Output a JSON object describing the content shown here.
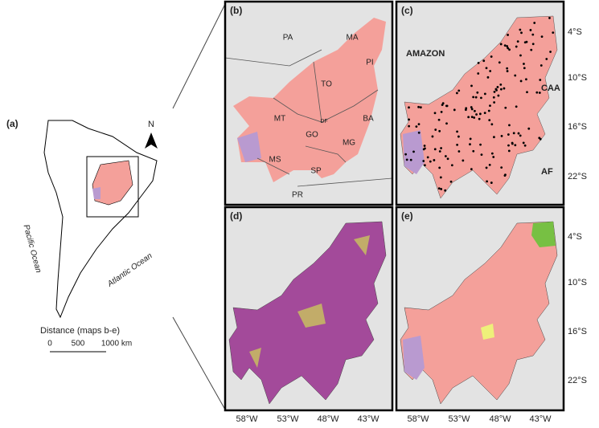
{
  "panel_a": {
    "label": "(a)",
    "north": "N",
    "pacific": "Pacific Ocean",
    "atlantic": "Atlantic Ocean",
    "scale_title": "Distance (maps b-e)",
    "scale_ticks": [
      "0",
      "500",
      "1000 km"
    ]
  },
  "panel_b": {
    "label": "(b)",
    "states": [
      "PA",
      "MA",
      "PI",
      "TO",
      "BA",
      "MT",
      "DF",
      "GO",
      "MG",
      "MS",
      "SP",
      "PR"
    ]
  },
  "panel_c": {
    "label": "(c)",
    "regions": [
      "AMAZON",
      "CAA",
      "AF"
    ]
  },
  "panel_d": {
    "label": "(d)"
  },
  "panel_e": {
    "label": "(e)"
  },
  "latitudes": [
    "4°S",
    "10°S",
    "16°S",
    "22°S"
  ],
  "longitudes": [
    "58°W",
    "53°W",
    "48°W",
    "43°W"
  ]
}
